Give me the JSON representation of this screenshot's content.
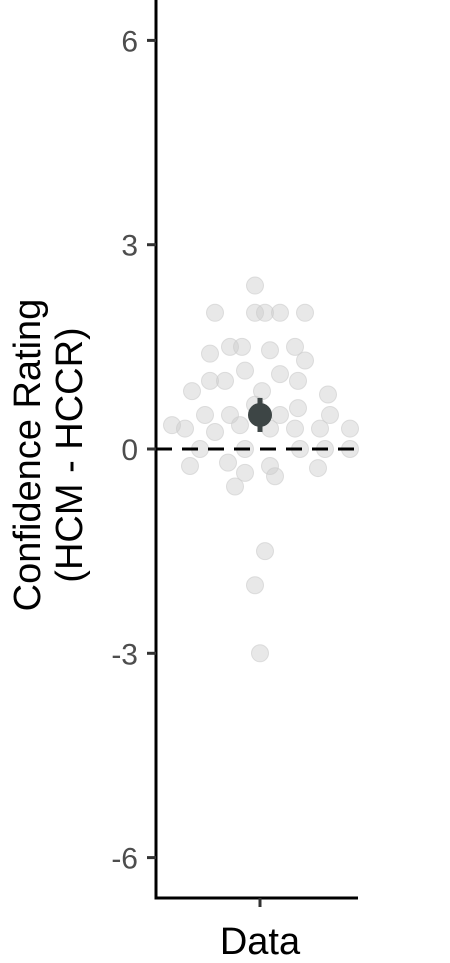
{
  "chart_data": {
    "type": "scatter",
    "title": "",
    "xlabel": "",
    "ylabel_lines": [
      "Confidence Rating",
      "(HCM - HCCR)"
    ],
    "categories": [
      "Data"
    ],
    "yticks": [
      6,
      3,
      0,
      -3,
      -6
    ],
    "ytick_labels": [
      "6",
      "3",
      "0",
      "-3",
      "-6"
    ],
    "ylim": [
      -6.6,
      6.6
    ],
    "reference_line": 0,
    "series": [
      {
        "category": "Data",
        "points": [
          {
            "x": -0.05,
            "y": 2.4
          },
          {
            "x": -0.45,
            "y": 2.0
          },
          {
            "x": -0.05,
            "y": 2.0
          },
          {
            "x": 0.05,
            "y": 2.0
          },
          {
            "x": 0.2,
            "y": 2.0
          },
          {
            "x": 0.45,
            "y": 2.0
          },
          {
            "x": -0.3,
            "y": 1.5
          },
          {
            "x": -0.18,
            "y": 1.5
          },
          {
            "x": 0.1,
            "y": 1.45
          },
          {
            "x": 0.35,
            "y": 1.5
          },
          {
            "x": -0.5,
            "y": 1.4
          },
          {
            "x": 0.45,
            "y": 1.3
          },
          {
            "x": -0.15,
            "y": 1.15
          },
          {
            "x": 0.2,
            "y": 1.1
          },
          {
            "x": -0.5,
            "y": 1.0
          },
          {
            "x": -0.35,
            "y": 1.0
          },
          {
            "x": 0.38,
            "y": 1.0
          },
          {
            "x": -0.68,
            "y": 0.85
          },
          {
            "x": 0.02,
            "y": 0.85
          },
          {
            "x": 0.68,
            "y": 0.8
          },
          {
            "x": -0.05,
            "y": 0.65
          },
          {
            "x": -0.55,
            "y": 0.5
          },
          {
            "x": -0.3,
            "y": 0.5
          },
          {
            "x": 0.2,
            "y": 0.5
          },
          {
            "x": 0.38,
            "y": 0.6
          },
          {
            "x": 0.7,
            "y": 0.5
          },
          {
            "x": -0.88,
            "y": 0.35
          },
          {
            "x": -0.75,
            "y": 0.3
          },
          {
            "x": -0.45,
            "y": 0.25
          },
          {
            "x": -0.2,
            "y": 0.35
          },
          {
            "x": 0.1,
            "y": 0.3
          },
          {
            "x": 0.35,
            "y": 0.3
          },
          {
            "x": 0.6,
            "y": 0.3
          },
          {
            "x": 0.9,
            "y": 0.3
          },
          {
            "x": -0.6,
            "y": 0.0
          },
          {
            "x": -0.15,
            "y": 0.0
          },
          {
            "x": 0.4,
            "y": 0.0
          },
          {
            "x": 0.65,
            "y": 0.0
          },
          {
            "x": 0.9,
            "y": 0.0
          },
          {
            "x": -0.7,
            "y": -0.25
          },
          {
            "x": -0.32,
            "y": -0.2
          },
          {
            "x": 0.1,
            "y": -0.25
          },
          {
            "x": 0.58,
            "y": -0.28
          },
          {
            "x": -0.15,
            "y": -0.35
          },
          {
            "x": 0.15,
            "y": -0.4
          },
          {
            "x": -0.25,
            "y": -0.55
          },
          {
            "x": 0.05,
            "y": -1.5
          },
          {
            "x": -0.05,
            "y": -2.0
          },
          {
            "x": 0.0,
            "y": -3.0
          }
        ]
      }
    ],
    "summary": {
      "mean": 0.5,
      "ci_low": 0.25,
      "ci_high": 0.75
    },
    "colors": {
      "points": "#cccccc",
      "summary": "#3d4545",
      "axis": "#000000",
      "reference": "#000000"
    }
  }
}
